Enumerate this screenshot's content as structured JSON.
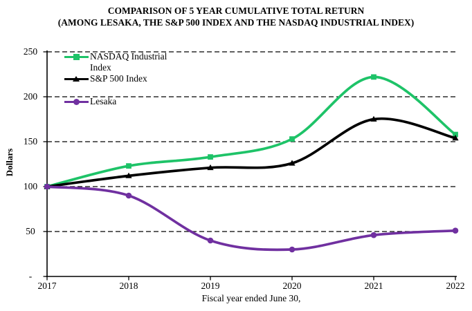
{
  "title": {
    "line1": "COMPARISON OF 5 YEAR CUMULATIVE TOTAL RETURN",
    "line2": "(AMONG LESAKA, THE S&P 500 INDEX AND THE NASDAQ INDUSTRIAL INDEX)"
  },
  "chart_data": {
    "type": "line",
    "title": "COMPARISON OF 5 YEAR CUMULATIVE TOTAL RETURN (AMONG LESAKA, THE S&P 500 INDEX AND THE NASDAQ INDUSTRIAL INDEX)",
    "xlabel": "Fiscal year ended June 30,",
    "ylabel": "Dollars",
    "x": [
      2017,
      2018,
      2019,
      2020,
      2021,
      2022
    ],
    "x_tick_labels": [
      "2017",
      "2018",
      "2019",
      "2020",
      "2021",
      "2022"
    ],
    "ylim": [
      0,
      250
    ],
    "y_ticks": [
      250,
      200,
      150,
      100,
      50,
      0
    ],
    "y_tick_labels": [
      "250",
      "200",
      "150",
      "100",
      "50",
      "-"
    ],
    "grid": "dashed horizontal gridlines at every 50",
    "legend_position": "top-left inside plot area",
    "line_style": "smoothed",
    "series": [
      {
        "name": "NASDAQ Industrial Index",
        "color": "#1EC368",
        "marker": "square",
        "values": [
          100,
          123,
          133,
          153,
          222,
          158
        ]
      },
      {
        "name": "S&P 500 Index",
        "color": "#000000",
        "marker": "triangle",
        "values": [
          100,
          112,
          121,
          126,
          175,
          154
        ]
      },
      {
        "name": "Lesaka",
        "color": "#7030A0",
        "marker": "circle",
        "values": [
          100,
          90,
          40,
          30,
          46,
          51
        ]
      }
    ]
  }
}
